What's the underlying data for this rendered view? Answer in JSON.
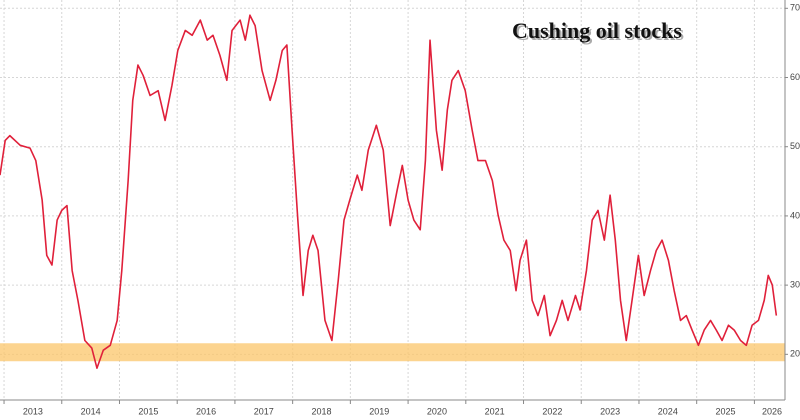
{
  "chart_data": {
    "type": "line",
    "title": "Cushing oil stocks",
    "x": [
      2012.93,
      2013.02,
      2013.1,
      2013.28,
      2013.45,
      2013.55,
      2013.66,
      2013.74,
      2013.83,
      2013.92,
      2014.0,
      2014.09,
      2014.18,
      2014.28,
      2014.4,
      2014.52,
      2014.61,
      2014.72,
      2014.84,
      2014.96,
      2015.04,
      2015.15,
      2015.23,
      2015.32,
      2015.41,
      2015.53,
      2015.67,
      2015.79,
      2015.91,
      2016.01,
      2016.14,
      2016.26,
      2016.4,
      2016.52,
      2016.62,
      2016.74,
      2016.86,
      2016.95,
      2017.09,
      2017.18,
      2017.26,
      2017.35,
      2017.47,
      2017.61,
      2017.71,
      2017.82,
      2017.9,
      2017.99,
      2018.09,
      2018.18,
      2018.27,
      2018.35,
      2018.44,
      2018.56,
      2018.68,
      2018.79,
      2018.89,
      2018.99,
      2019.12,
      2019.2,
      2019.31,
      2019.45,
      2019.57,
      2019.69,
      2019.81,
      2019.9,
      2020.0,
      2020.1,
      2020.21,
      2020.3,
      2020.38,
      2020.49,
      2020.59,
      2020.68,
      2020.76,
      2020.87,
      2020.99,
      2021.11,
      2021.21,
      2021.34,
      2021.46,
      2021.56,
      2021.66,
      2021.77,
      2021.87,
      2021.94,
      2022.05,
      2022.15,
      2022.25,
      2022.36,
      2022.46,
      2022.57,
      2022.67,
      2022.77,
      2022.9,
      2022.98,
      2023.09,
      2023.19,
      2023.29,
      2023.4,
      2023.5,
      2023.59,
      2023.68,
      2023.78,
      2023.88,
      2023.99,
      2024.09,
      2024.2,
      2024.3,
      2024.4,
      2024.51,
      2024.61,
      2024.72,
      2024.82,
      2024.92,
      2025.03,
      2025.13,
      2025.24,
      2025.34,
      2025.44,
      2025.55,
      2025.65,
      2025.76,
      2025.86,
      2025.96,
      2026.07,
      2026.17,
      2026.24,
      2026.31,
      2026.38
    ],
    "series": [
      {
        "name": "Cushing oil stocks",
        "color": "#e0203a",
        "values": [
          45.9,
          50.9,
          51.6,
          50.2,
          49.8,
          48,
          42.3,
          34.3,
          32.9,
          39.4,
          40.8,
          41.5,
          32.1,
          27.8,
          22,
          20.9,
          18,
          20.6,
          21.3,
          24.9,
          32.1,
          45.1,
          56.7,
          61.8,
          60.3,
          57.4,
          58.1,
          53.8,
          58.9,
          63.9,
          66.8,
          66.1,
          68.3,
          65.4,
          66.1,
          63.2,
          59.6,
          66.8,
          68.3,
          65.4,
          69,
          67.5,
          61,
          56.7,
          59.6,
          63.9,
          64.7,
          52.4,
          39.4,
          28.5,
          35,
          37.2,
          35,
          24.9,
          22,
          30.7,
          39.4,
          42.3,
          45.9,
          43.7,
          49.5,
          53.1,
          49.5,
          38.6,
          43.7,
          47.3,
          42.3,
          39.4,
          38,
          48,
          65.4,
          52.4,
          46.6,
          55.3,
          59.6,
          61,
          58.1,
          52.4,
          48,
          48,
          45.1,
          40.1,
          36.5,
          35,
          29.2,
          33.6,
          36.5,
          27.8,
          25.6,
          28.5,
          22.7,
          24.9,
          27.8,
          24.9,
          28.5,
          26.4,
          32.1,
          39.4,
          40.8,
          36.5,
          43,
          36.5,
          27.8,
          22,
          27.8,
          34.3,
          28.5,
          32.1,
          35,
          36.5,
          33.6,
          29.2,
          24.9,
          25.6,
          23.5,
          21.3,
          23.5,
          24.9,
          23.5,
          22,
          24.2,
          23.5,
          22,
          21.3,
          24.2,
          24.9,
          27.8,
          31.4,
          30,
          25.6
        ]
      }
    ],
    "xlim": [
      2012.93,
      2026.53
    ],
    "xticks": [
      2013,
      2014,
      2015,
      2016,
      2017,
      2018,
      2019,
      2020,
      2021,
      2022,
      2023,
      2024,
      2025,
      2026
    ],
    "ylim": [
      13.4,
      71.2
    ],
    "yticks": [
      20,
      30,
      40,
      50,
      60,
      70
    ],
    "band": [
      19,
      21.6
    ],
    "band_color": "#fbc66a",
    "grid": true
  }
}
